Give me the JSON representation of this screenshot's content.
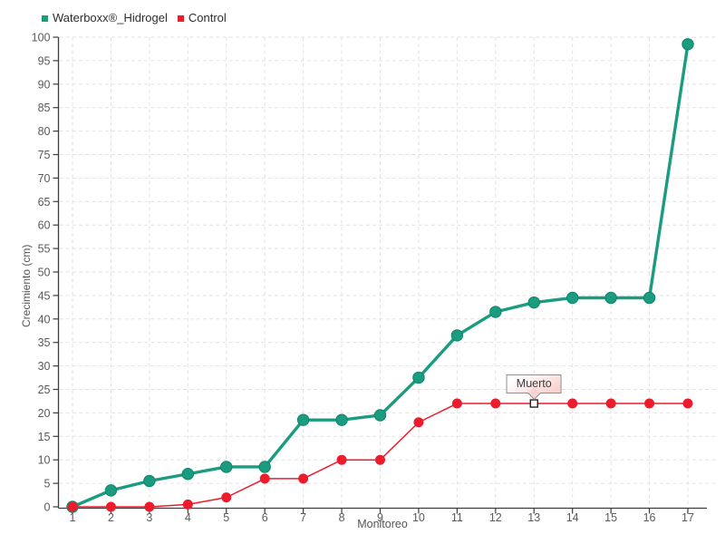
{
  "chart_data": {
    "type": "line",
    "title": "",
    "xlabel": "Monitoreo",
    "ylabel": "Crecimiento (cm)",
    "x": [
      1,
      2,
      3,
      4,
      5,
      6,
      7,
      8,
      9,
      10,
      11,
      12,
      13,
      14,
      15,
      16,
      17
    ],
    "xlim": [
      1,
      17
    ],
    "ylim": [
      0,
      100
    ],
    "ytick_step": 5,
    "grid": true,
    "legend_position": "top-left",
    "series": [
      {
        "name": "Waterboxx®_Hidrogel",
        "color": "#1b9c80",
        "marker_edge": "#0f8468",
        "marker": "circle",
        "marker_size": 6.2,
        "line_width": 3.4,
        "values": [
          0,
          3.5,
          5.5,
          7,
          8.5,
          8.5,
          18.5,
          18.5,
          19.5,
          27.5,
          36.5,
          41.5,
          43.5,
          44.5,
          44.5,
          44.5,
          98.5
        ]
      },
      {
        "name": "Control",
        "color": "#ec1c2c",
        "marker_edge": "#ec1c2c",
        "marker": "circle",
        "marker_size": 5,
        "line_width": 1.5,
        "values": [
          0,
          0,
          0,
          0.5,
          2,
          6,
          6,
          10,
          10,
          18,
          22,
          22,
          22,
          22,
          22,
          22,
          22
        ]
      }
    ],
    "annotation": {
      "text": "Muerto",
      "series": "Control",
      "x": 13,
      "y": 22,
      "marker": "white-square"
    }
  }
}
